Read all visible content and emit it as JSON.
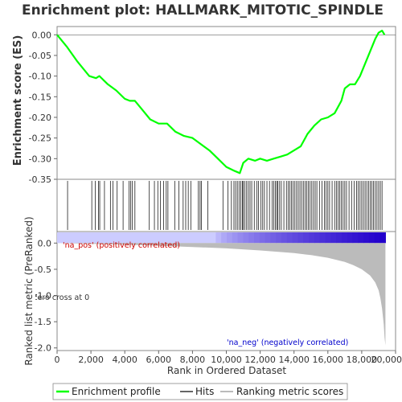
{
  "chart_data": {
    "type": "line",
    "title": "Enrichment plot: HALLMARK_MITOTIC_SPINDLE",
    "xlabel": "Rank in Ordered Dataset",
    "ylabel_top": "Enrichment score (ES)",
    "ylabel_bottom": "Ranked list metric (PreRanked)",
    "x_range": [
      0,
      20000
    ],
    "x_ticks": [
      0,
      2000,
      4000,
      6000,
      8000,
      10000,
      12000,
      14000,
      16000,
      18000,
      20000
    ],
    "x_tick_labels": [
      "0",
      "2,000",
      "4,000",
      "6,000",
      "8,000",
      "10,000",
      "12,000",
      "14,000",
      "16,000",
      "18,000",
      "20,000"
    ],
    "es_ylim": [
      -0.35,
      0.02
    ],
    "es_ticks": [
      0.0,
      -0.05,
      -0.1,
      -0.15,
      -0.2,
      -0.25,
      -0.3,
      -0.35
    ],
    "es_tick_labels": [
      "0.00",
      "-0.05",
      "-0.10",
      "-0.15",
      "-0.20",
      "-0.25",
      "-0.30",
      "-0.35"
    ],
    "metric_ylim": [
      -2.05,
      0.22
    ],
    "metric_ticks": [
      0.0,
      -0.5,
      -1.0,
      -1.5,
      -2.0
    ],
    "metric_tick_labels": [
      "0.0",
      "-0.5",
      "-1.0",
      "-1.5",
      "-2.0"
    ],
    "series": [
      {
        "name": "Enrichment profile",
        "color": "#00ff00",
        "x": [
          0,
          600,
          1200,
          1900,
          2300,
          2500,
          3000,
          3500,
          4000,
          4300,
          4600,
          5000,
          5500,
          6000,
          6500,
          7000,
          7500,
          8000,
          8500,
          9000,
          9500,
          10000,
          10500,
          10800,
          11000,
          11300,
          11700,
          12000,
          12400,
          12800,
          13200,
          13600,
          14000,
          14400,
          14800,
          15200,
          15600,
          16000,
          16400,
          16800,
          17000,
          17300,
          17600,
          17900,
          18200,
          18500,
          18800,
          19000,
          19200,
          19350
        ],
        "y": [
          0.0,
          -0.03,
          -0.065,
          -0.1,
          -0.105,
          -0.1,
          -0.12,
          -0.135,
          -0.155,
          -0.16,
          -0.16,
          -0.18,
          -0.205,
          -0.215,
          -0.215,
          -0.235,
          -0.245,
          -0.25,
          -0.265,
          -0.28,
          -0.3,
          -0.32,
          -0.33,
          -0.335,
          -0.31,
          -0.3,
          -0.305,
          -0.3,
          -0.305,
          -0.3,
          -0.295,
          -0.29,
          -0.28,
          -0.27,
          -0.24,
          -0.22,
          -0.205,
          -0.2,
          -0.19,
          -0.16,
          -0.13,
          -0.12,
          -0.12,
          -0.1,
          -0.07,
          -0.04,
          -0.01,
          0.005,
          0.01,
          0.0
        ]
      },
      {
        "name": "Hits",
        "color": "#000000",
        "positions": [
          620,
          2050,
          2250,
          2450,
          2520,
          2800,
          3150,
          3300,
          3550,
          3900,
          4250,
          4350,
          4450,
          4600,
          5450,
          5750,
          5950,
          6100,
          6300,
          6450,
          6550,
          6950,
          7200,
          7450,
          7600,
          7750,
          7900,
          8350,
          8450,
          8520,
          8900,
          9800,
          10100,
          10300,
          10450,
          10550,
          10650,
          10750,
          10850,
          10950,
          11000,
          11100,
          11200,
          11300,
          11400,
          11500,
          11650,
          11800,
          11900,
          12050,
          12150,
          12250,
          12400,
          12550,
          12700,
          12800,
          12900,
          12980,
          13050,
          13150,
          13250,
          13400,
          13550,
          13650,
          13750,
          13850,
          13950,
          14050,
          14150,
          14250,
          14350,
          14450,
          14550,
          14650,
          14750,
          14850,
          14950,
          15050,
          15150,
          15250,
          15350,
          15500,
          15650,
          15800,
          15900,
          16000,
          16100,
          16250,
          16400,
          16500,
          16600,
          16700,
          16800,
          16900,
          17000,
          17100,
          17250,
          17400,
          17550,
          17700,
          17800,
          17900,
          18000,
          18100,
          18200,
          18300,
          18400,
          18500,
          18600,
          18700,
          18800,
          18900,
          19000,
          19100,
          19200
        ]
      },
      {
        "name": "Ranking metric scores",
        "color": "#bbbbbb",
        "x": [
          0,
          2000,
          4000,
          6000,
          8000,
          10000,
          12000,
          14000,
          15000,
          16000,
          17000,
          17500,
          18000,
          18500,
          18800,
          19000,
          19100,
          19200,
          19300,
          19350,
          19400
        ],
        "y": [
          0.0,
          -0.015,
          -0.03,
          -0.05,
          -0.075,
          -0.1,
          -0.14,
          -0.19,
          -0.23,
          -0.28,
          -0.36,
          -0.42,
          -0.5,
          -0.62,
          -0.75,
          -0.9,
          -1.05,
          -1.25,
          -1.55,
          -1.8,
          -1.95
        ]
      }
    ],
    "annotations": {
      "pos_label": "'na_pos' (positively correlated)",
      "neg_label": "'na_neg' (negatively correlated)",
      "zero_cross": "Zero cross at 0"
    },
    "grid": false,
    "legend_position": "bottom"
  },
  "colors": {
    "background": "#ffffff",
    "plot_border": "#888888",
    "pos_text": "#cc0000",
    "neg_text": "#0000cc",
    "strip_light": "#ccccff",
    "strip_dark": "#2200cc"
  }
}
